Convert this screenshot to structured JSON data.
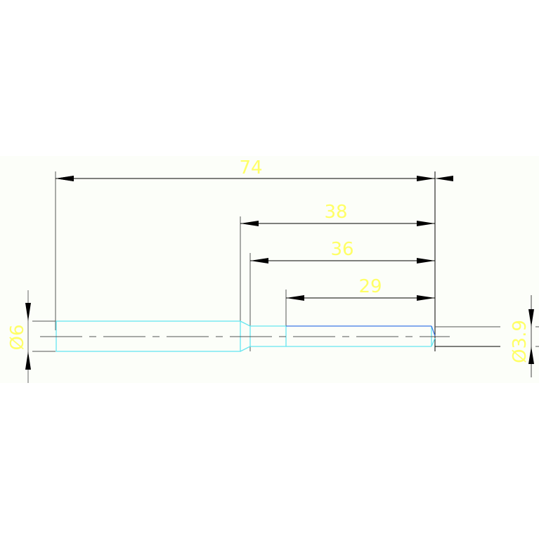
{
  "drawing": {
    "dimensions": {
      "overall_length": "74",
      "length_38": "38",
      "length_36": "36",
      "length_29": "29",
      "diameter_left": "Ø6",
      "diameter_right": "Ø3.9"
    },
    "colors": {
      "dimension_text": "#ffff66",
      "part_outline": "#66e6f0",
      "part_edge_blue": "#3c78e6",
      "dimension_line": "#000000",
      "background": "#fcfef9"
    }
  }
}
